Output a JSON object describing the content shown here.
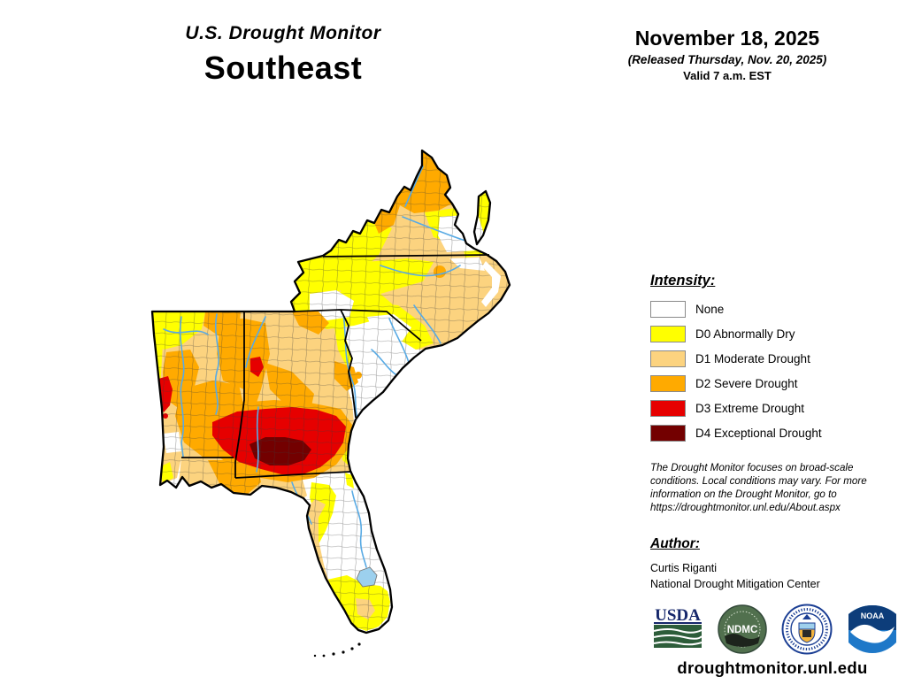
{
  "header": {
    "title": "U.S. Drought Monitor",
    "region": "Southeast"
  },
  "date_block": {
    "date": "November 18, 2025",
    "released": "(Released Thursday, Nov. 20, 2025)",
    "valid": "Valid 7 a.m. EST"
  },
  "legend": {
    "heading": "Intensity:",
    "items": [
      {
        "label": "None",
        "color": "#FFFFFF"
      },
      {
        "label": "D0 Abnormally Dry",
        "color": "#FFFF00"
      },
      {
        "label": "D1 Moderate Drought",
        "color": "#FCD37F"
      },
      {
        "label": "D2 Severe Drought",
        "color": "#FFAA00"
      },
      {
        "label": "D3 Extreme Drought",
        "color": "#E60000"
      },
      {
        "label": "D4 Exceptional Drought",
        "color": "#730000"
      }
    ]
  },
  "disclaimer": "The Drought Monitor focuses on broad-scale conditions. Local conditions may vary. For more information on the Drought Monitor, go to https://droughtmonitor.unl.edu/About.aspx",
  "author": {
    "heading": "Author:",
    "name": "Curtis Riganti",
    "org": "National Drought Mitigation Center"
  },
  "logos": {
    "usda": "USDA",
    "ndmc": "NDMC",
    "noaa": "NOAA"
  },
  "footer": {
    "url": "droughtmonitor.unl.edu"
  }
}
